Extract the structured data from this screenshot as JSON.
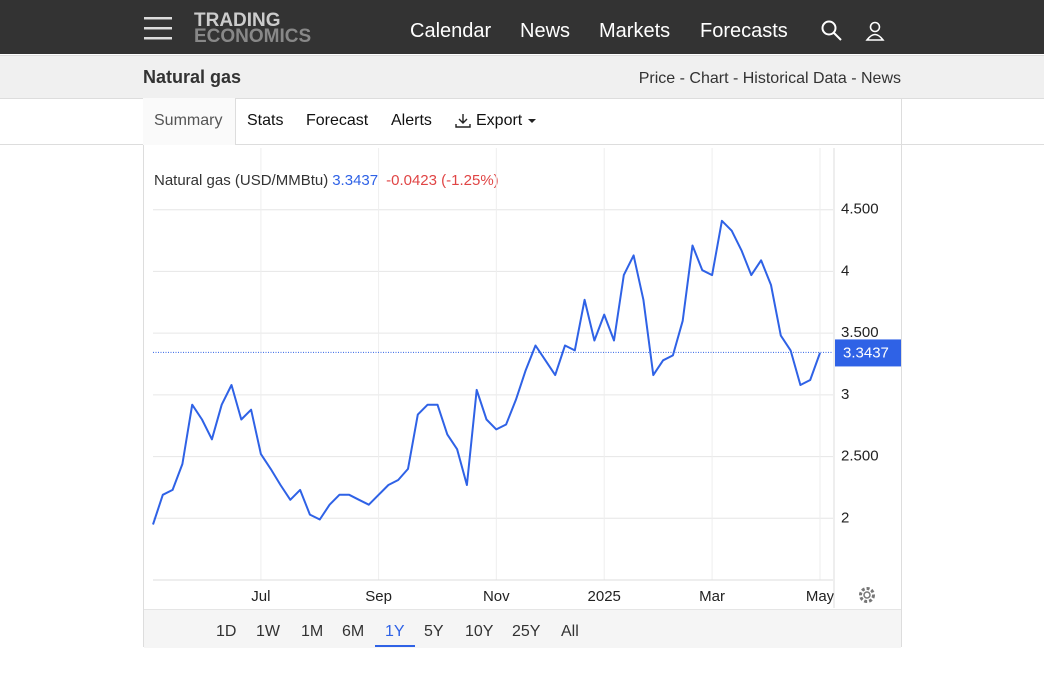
{
  "header": {
    "logo": [
      "TRADING",
      "ECONOMICS"
    ],
    "nav": [
      "Calendar",
      "News",
      "Markets",
      "Forecasts"
    ]
  },
  "subheader": {
    "title": "Natural gas",
    "links": "Price - Chart - Historical Data - News"
  },
  "tabs": [
    "Summary",
    "Stats",
    "Forecast",
    "Alerts",
    "Export"
  ],
  "ranges": [
    "1D",
    "1W",
    "1M",
    "6M",
    "1Y",
    "5Y",
    "10Y",
    "25Y",
    "All"
  ],
  "selected_range": 4,
  "chart_data": {
    "type": "line",
    "title": "Natural gas (USD/MMBtu)",
    "last_value": 3.3437,
    "change": "-0.0423 (-1.25%)",
    "color": "#2f62e6",
    "categories": [
      null,
      null,
      null,
      null,
      null,
      null,
      null,
      null,
      null,
      null,
      null,
      "Jul",
      null,
      null,
      null,
      null,
      null,
      null,
      null,
      null,
      null,
      null,
      null,
      "Sep",
      null,
      null,
      null,
      null,
      null,
      null,
      null,
      null,
      null,
      null,
      null,
      "Nov",
      null,
      null,
      null,
      null,
      null,
      null,
      null,
      null,
      null,
      null,
      "2025",
      null,
      null,
      null,
      null,
      null,
      null,
      null,
      null,
      null,
      null,
      "Mar",
      null,
      null,
      null,
      null,
      null,
      null,
      null,
      null,
      null,
      null,
      "May"
    ],
    "values": [
      1.95,
      2.19,
      2.23,
      2.44,
      2.92,
      2.8,
      2.64,
      2.92,
      3.08,
      2.8,
      2.88,
      2.52,
      2.4,
      2.27,
      2.15,
      2.23,
      2.03,
      1.99,
      2.11,
      2.19,
      2.19,
      2.15,
      2.11,
      2.19,
      2.27,
      2.31,
      2.4,
      2.84,
      2.92,
      2.92,
      2.68,
      2.56,
      2.27,
      3.04,
      2.8,
      2.72,
      2.76,
      2.96,
      3.2,
      3.4,
      3.28,
      3.16,
      3.4,
      3.36,
      3.77,
      3.44,
      3.65,
      3.44,
      3.97,
      4.13,
      3.77,
      3.16,
      3.28,
      3.32,
      3.6,
      4.21,
      4.01,
      3.97,
      4.41,
      4.33,
      4.17,
      3.97,
      4.09,
      3.89,
      3.48,
      3.36,
      3.08,
      3.12,
      3.34
    ],
    "ylim": [
      1.5,
      5
    ],
    "yticks": [
      2,
      {
        "value": 2.5,
        "label": "2.500"
      },
      3,
      {
        "value": 3.5,
        "label": "3.500"
      },
      4,
      {
        "value": 4.5,
        "label": "4.500"
      }
    ],
    "grid": true
  }
}
